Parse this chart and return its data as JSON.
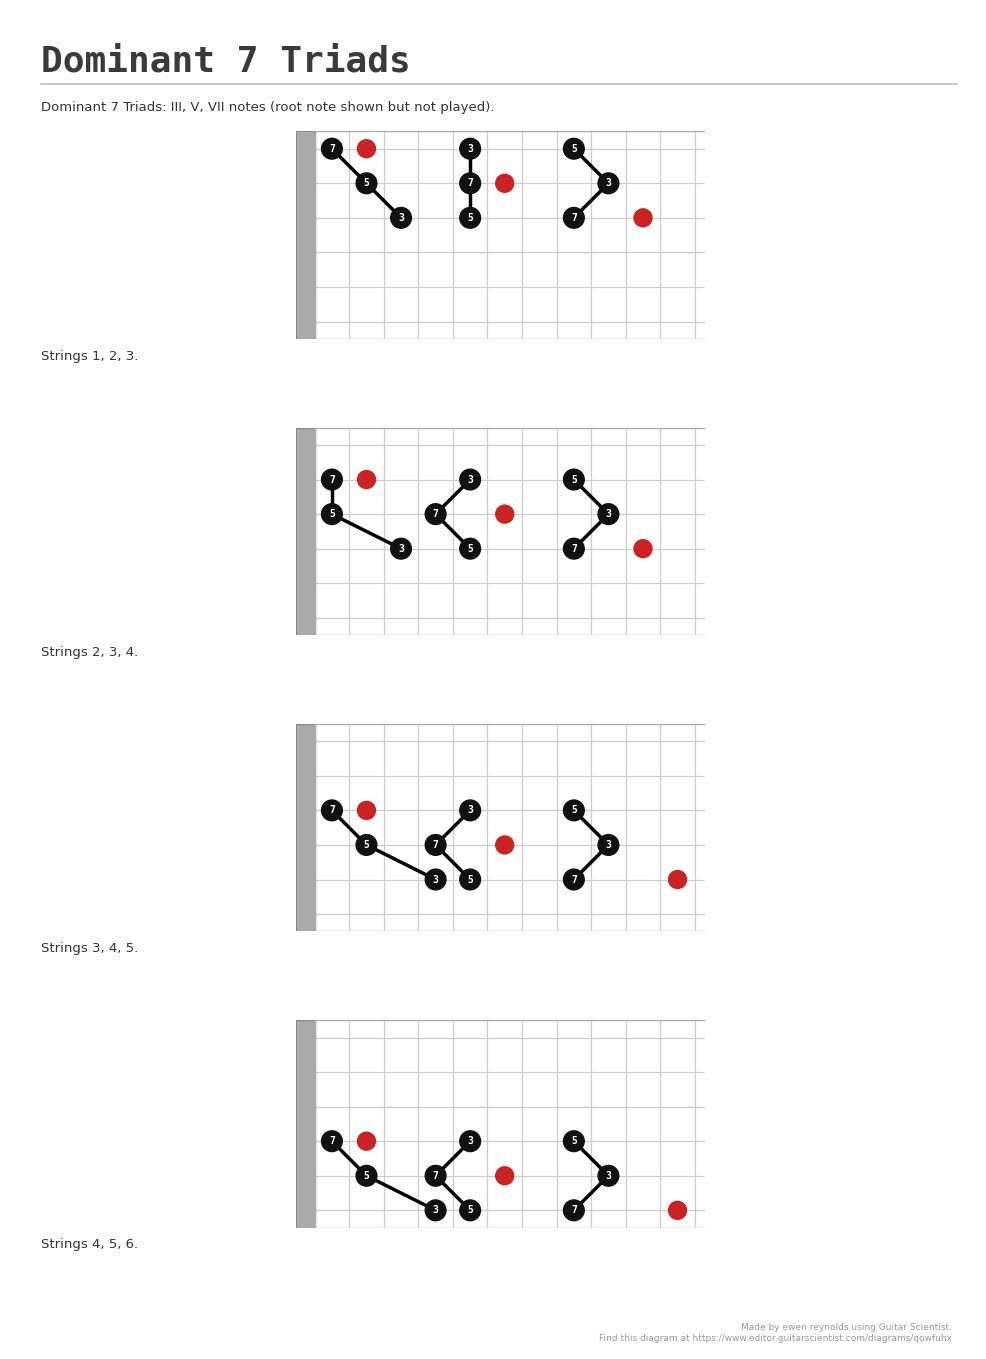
{
  "title": "Dominant 7 Triads",
  "subtitle": "Dominant 7 Triads: III, V, VII notes (root note shown but not played).",
  "footer": "Made by ewen reynolds using Guitar Scientist.\nFind this diagram at https://www.editor.guitarscientist.com/diagrams/qowfuhx",
  "background_color": "#ffffff",
  "title_color": "#3a3a3a",
  "grid_color": "#cccccc",
  "nut_color": "#aaaaaa",
  "black_dot_color": "#111111",
  "red_dot_color": "#cc2222",
  "num_frets": 11,
  "num_strings": 6,
  "rows": [
    {
      "label": "Strings 1, 2, 3.",
      "voicings": [
        {
          "notes": [
            {
              "fret_col": 0,
              "string_row": 0,
              "label": "7",
              "color": "black"
            },
            {
              "fret_col": 1,
              "string_row": 1,
              "label": "5",
              "color": "black"
            },
            {
              "fret_col": 2,
              "string_row": 2,
              "label": "3",
              "color": "black"
            },
            {
              "fret_col": 1,
              "string_row": 0,
              "label": "",
              "color": "red"
            }
          ],
          "lines": [
            [
              0,
              0,
              1,
              1
            ],
            [
              1,
              1,
              2,
              2
            ]
          ]
        },
        {
          "notes": [
            {
              "fret_col": 4,
              "string_row": 0,
              "label": "3",
              "color": "black"
            },
            {
              "fret_col": 4,
              "string_row": 1,
              "label": "7",
              "color": "black"
            },
            {
              "fret_col": 4,
              "string_row": 2,
              "label": "5",
              "color": "black"
            },
            {
              "fret_col": 5,
              "string_row": 1,
              "label": "",
              "color": "red"
            }
          ],
          "lines": [
            [
              4,
              0,
              4,
              1
            ],
            [
              4,
              1,
              4,
              2
            ]
          ]
        },
        {
          "notes": [
            {
              "fret_col": 7,
              "string_row": 0,
              "label": "5",
              "color": "black"
            },
            {
              "fret_col": 8,
              "string_row": 1,
              "label": "3",
              "color": "black"
            },
            {
              "fret_col": 7,
              "string_row": 2,
              "label": "7",
              "color": "black"
            },
            {
              "fret_col": 9,
              "string_row": 2,
              "label": "",
              "color": "red"
            }
          ],
          "lines": [
            [
              7,
              0,
              8,
              1
            ],
            [
              8,
              1,
              7,
              2
            ]
          ]
        }
      ]
    },
    {
      "label": "Strings 2, 3, 4.",
      "voicings": [
        {
          "notes": [
            {
              "fret_col": 0,
              "string_row": 1,
              "label": "7",
              "color": "black"
            },
            {
              "fret_col": 0,
              "string_row": 2,
              "label": "5",
              "color": "black"
            },
            {
              "fret_col": 2,
              "string_row": 3,
              "label": "3",
              "color": "black"
            },
            {
              "fret_col": 1,
              "string_row": 1,
              "label": "",
              "color": "red"
            }
          ],
          "lines": [
            [
              0,
              1,
              0,
              2
            ],
            [
              0,
              2,
              2,
              3
            ]
          ]
        },
        {
          "notes": [
            {
              "fret_col": 4,
              "string_row": 1,
              "label": "3",
              "color": "black"
            },
            {
              "fret_col": 3,
              "string_row": 2,
              "label": "7",
              "color": "black"
            },
            {
              "fret_col": 4,
              "string_row": 3,
              "label": "5",
              "color": "black"
            },
            {
              "fret_col": 5,
              "string_row": 2,
              "label": "",
              "color": "red"
            }
          ],
          "lines": [
            [
              4,
              1,
              3,
              2
            ],
            [
              3,
              2,
              4,
              3
            ]
          ]
        },
        {
          "notes": [
            {
              "fret_col": 7,
              "string_row": 1,
              "label": "5",
              "color": "black"
            },
            {
              "fret_col": 8,
              "string_row": 2,
              "label": "3",
              "color": "black"
            },
            {
              "fret_col": 7,
              "string_row": 3,
              "label": "7",
              "color": "black"
            },
            {
              "fret_col": 9,
              "string_row": 3,
              "label": "",
              "color": "red"
            }
          ],
          "lines": [
            [
              7,
              1,
              8,
              2
            ],
            [
              8,
              2,
              7,
              3
            ]
          ]
        }
      ]
    },
    {
      "label": "Strings 3, 4, 5.",
      "voicings": [
        {
          "notes": [
            {
              "fret_col": 0,
              "string_row": 2,
              "label": "7",
              "color": "black"
            },
            {
              "fret_col": 1,
              "string_row": 3,
              "label": "5",
              "color": "black"
            },
            {
              "fret_col": 3,
              "string_row": 4,
              "label": "3",
              "color": "black"
            },
            {
              "fret_col": 1,
              "string_row": 2,
              "label": "",
              "color": "red"
            }
          ],
          "lines": [
            [
              0,
              2,
              1,
              3
            ],
            [
              1,
              3,
              3,
              4
            ]
          ]
        },
        {
          "notes": [
            {
              "fret_col": 4,
              "string_row": 2,
              "label": "3",
              "color": "black"
            },
            {
              "fret_col": 3,
              "string_row": 3,
              "label": "7",
              "color": "black"
            },
            {
              "fret_col": 4,
              "string_row": 4,
              "label": "5",
              "color": "black"
            },
            {
              "fret_col": 5,
              "string_row": 3,
              "label": "",
              "color": "red"
            }
          ],
          "lines": [
            [
              4,
              2,
              3,
              3
            ],
            [
              3,
              3,
              4,
              4
            ]
          ]
        },
        {
          "notes": [
            {
              "fret_col": 7,
              "string_row": 2,
              "label": "5",
              "color": "black"
            },
            {
              "fret_col": 8,
              "string_row": 3,
              "label": "3",
              "color": "black"
            },
            {
              "fret_col": 7,
              "string_row": 4,
              "label": "7",
              "color": "black"
            },
            {
              "fret_col": 10,
              "string_row": 4,
              "label": "",
              "color": "red"
            }
          ],
          "lines": [
            [
              7,
              2,
              8,
              3
            ],
            [
              8,
              3,
              7,
              4
            ]
          ]
        }
      ]
    },
    {
      "label": "Strings 4, 5, 6.",
      "voicings": [
        {
          "notes": [
            {
              "fret_col": 0,
              "string_row": 3,
              "label": "7",
              "color": "black"
            },
            {
              "fret_col": 1,
              "string_row": 4,
              "label": "5",
              "color": "black"
            },
            {
              "fret_col": 3,
              "string_row": 5,
              "label": "3",
              "color": "black"
            },
            {
              "fret_col": 1,
              "string_row": 3,
              "label": "",
              "color": "red"
            }
          ],
          "lines": [
            [
              0,
              3,
              1,
              4
            ],
            [
              1,
              4,
              3,
              5
            ]
          ]
        },
        {
          "notes": [
            {
              "fret_col": 4,
              "string_row": 3,
              "label": "3",
              "color": "black"
            },
            {
              "fret_col": 3,
              "string_row": 4,
              "label": "7",
              "color": "black"
            },
            {
              "fret_col": 4,
              "string_row": 5,
              "label": "5",
              "color": "black"
            },
            {
              "fret_col": 5,
              "string_row": 4,
              "label": "",
              "color": "red"
            }
          ],
          "lines": [
            [
              4,
              3,
              3,
              4
            ],
            [
              3,
              4,
              4,
              5
            ]
          ]
        },
        {
          "notes": [
            {
              "fret_col": 7,
              "string_row": 3,
              "label": "5",
              "color": "black"
            },
            {
              "fret_col": 8,
              "string_row": 4,
              "label": "3",
              "color": "black"
            },
            {
              "fret_col": 7,
              "string_row": 5,
              "label": "7",
              "color": "black"
            },
            {
              "fret_col": 10,
              "string_row": 5,
              "label": "",
              "color": "red"
            }
          ],
          "lines": [
            [
              7,
              3,
              8,
              4
            ],
            [
              8,
              4,
              7,
              5
            ]
          ]
        }
      ]
    }
  ]
}
